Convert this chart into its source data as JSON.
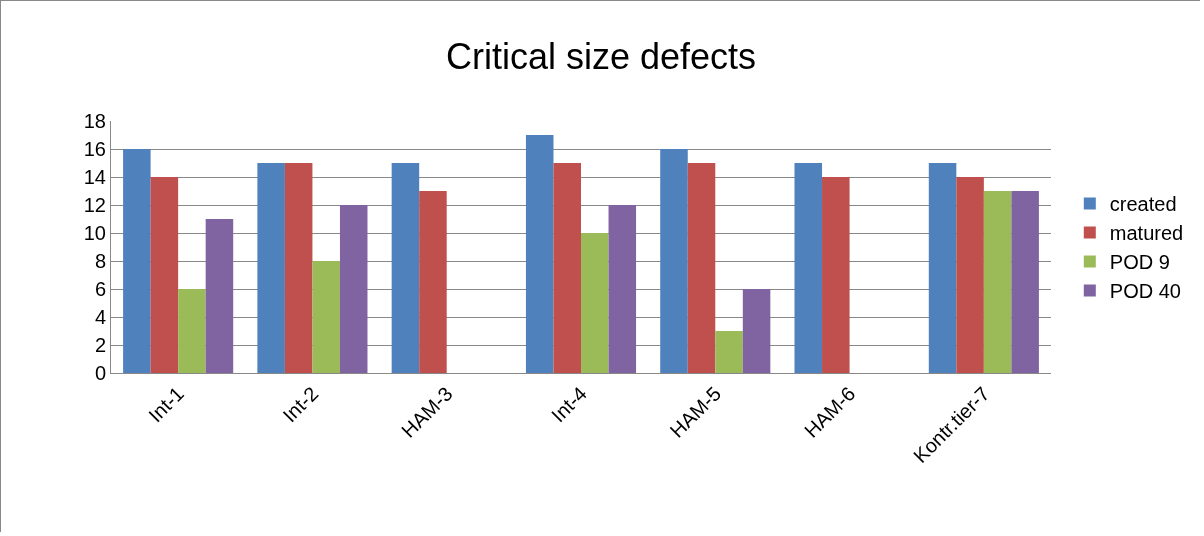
{
  "chart_data": {
    "type": "bar",
    "title": "Critical size defects",
    "categories": [
      "Int-1",
      "Int-2",
      "HAM-3",
      "Int-4",
      "HAM-5",
      "HAM-6",
      "Kontr.tier-7"
    ],
    "series": [
      {
        "name": "created",
        "color": "#4f81bd",
        "values": [
          16,
          15,
          15,
          17,
          16,
          15,
          15
        ]
      },
      {
        "name": "matured",
        "color": "#c0504d",
        "values": [
          14,
          15,
          13,
          15,
          15,
          14,
          14
        ]
      },
      {
        "name": "POD 9",
        "color": "#9bbb59",
        "values": [
          6,
          8,
          0,
          10,
          3,
          0,
          13
        ]
      },
      {
        "name": "POD 40",
        "color": "#8064a2",
        "values": [
          11,
          12,
          0,
          12,
          6,
          0,
          13
        ]
      }
    ],
    "ylim": [
      0,
      18
    ],
    "yticks": [
      0,
      2,
      4,
      6,
      8,
      10,
      12,
      14,
      16,
      18
    ],
    "grid": "y",
    "legend": "right"
  }
}
